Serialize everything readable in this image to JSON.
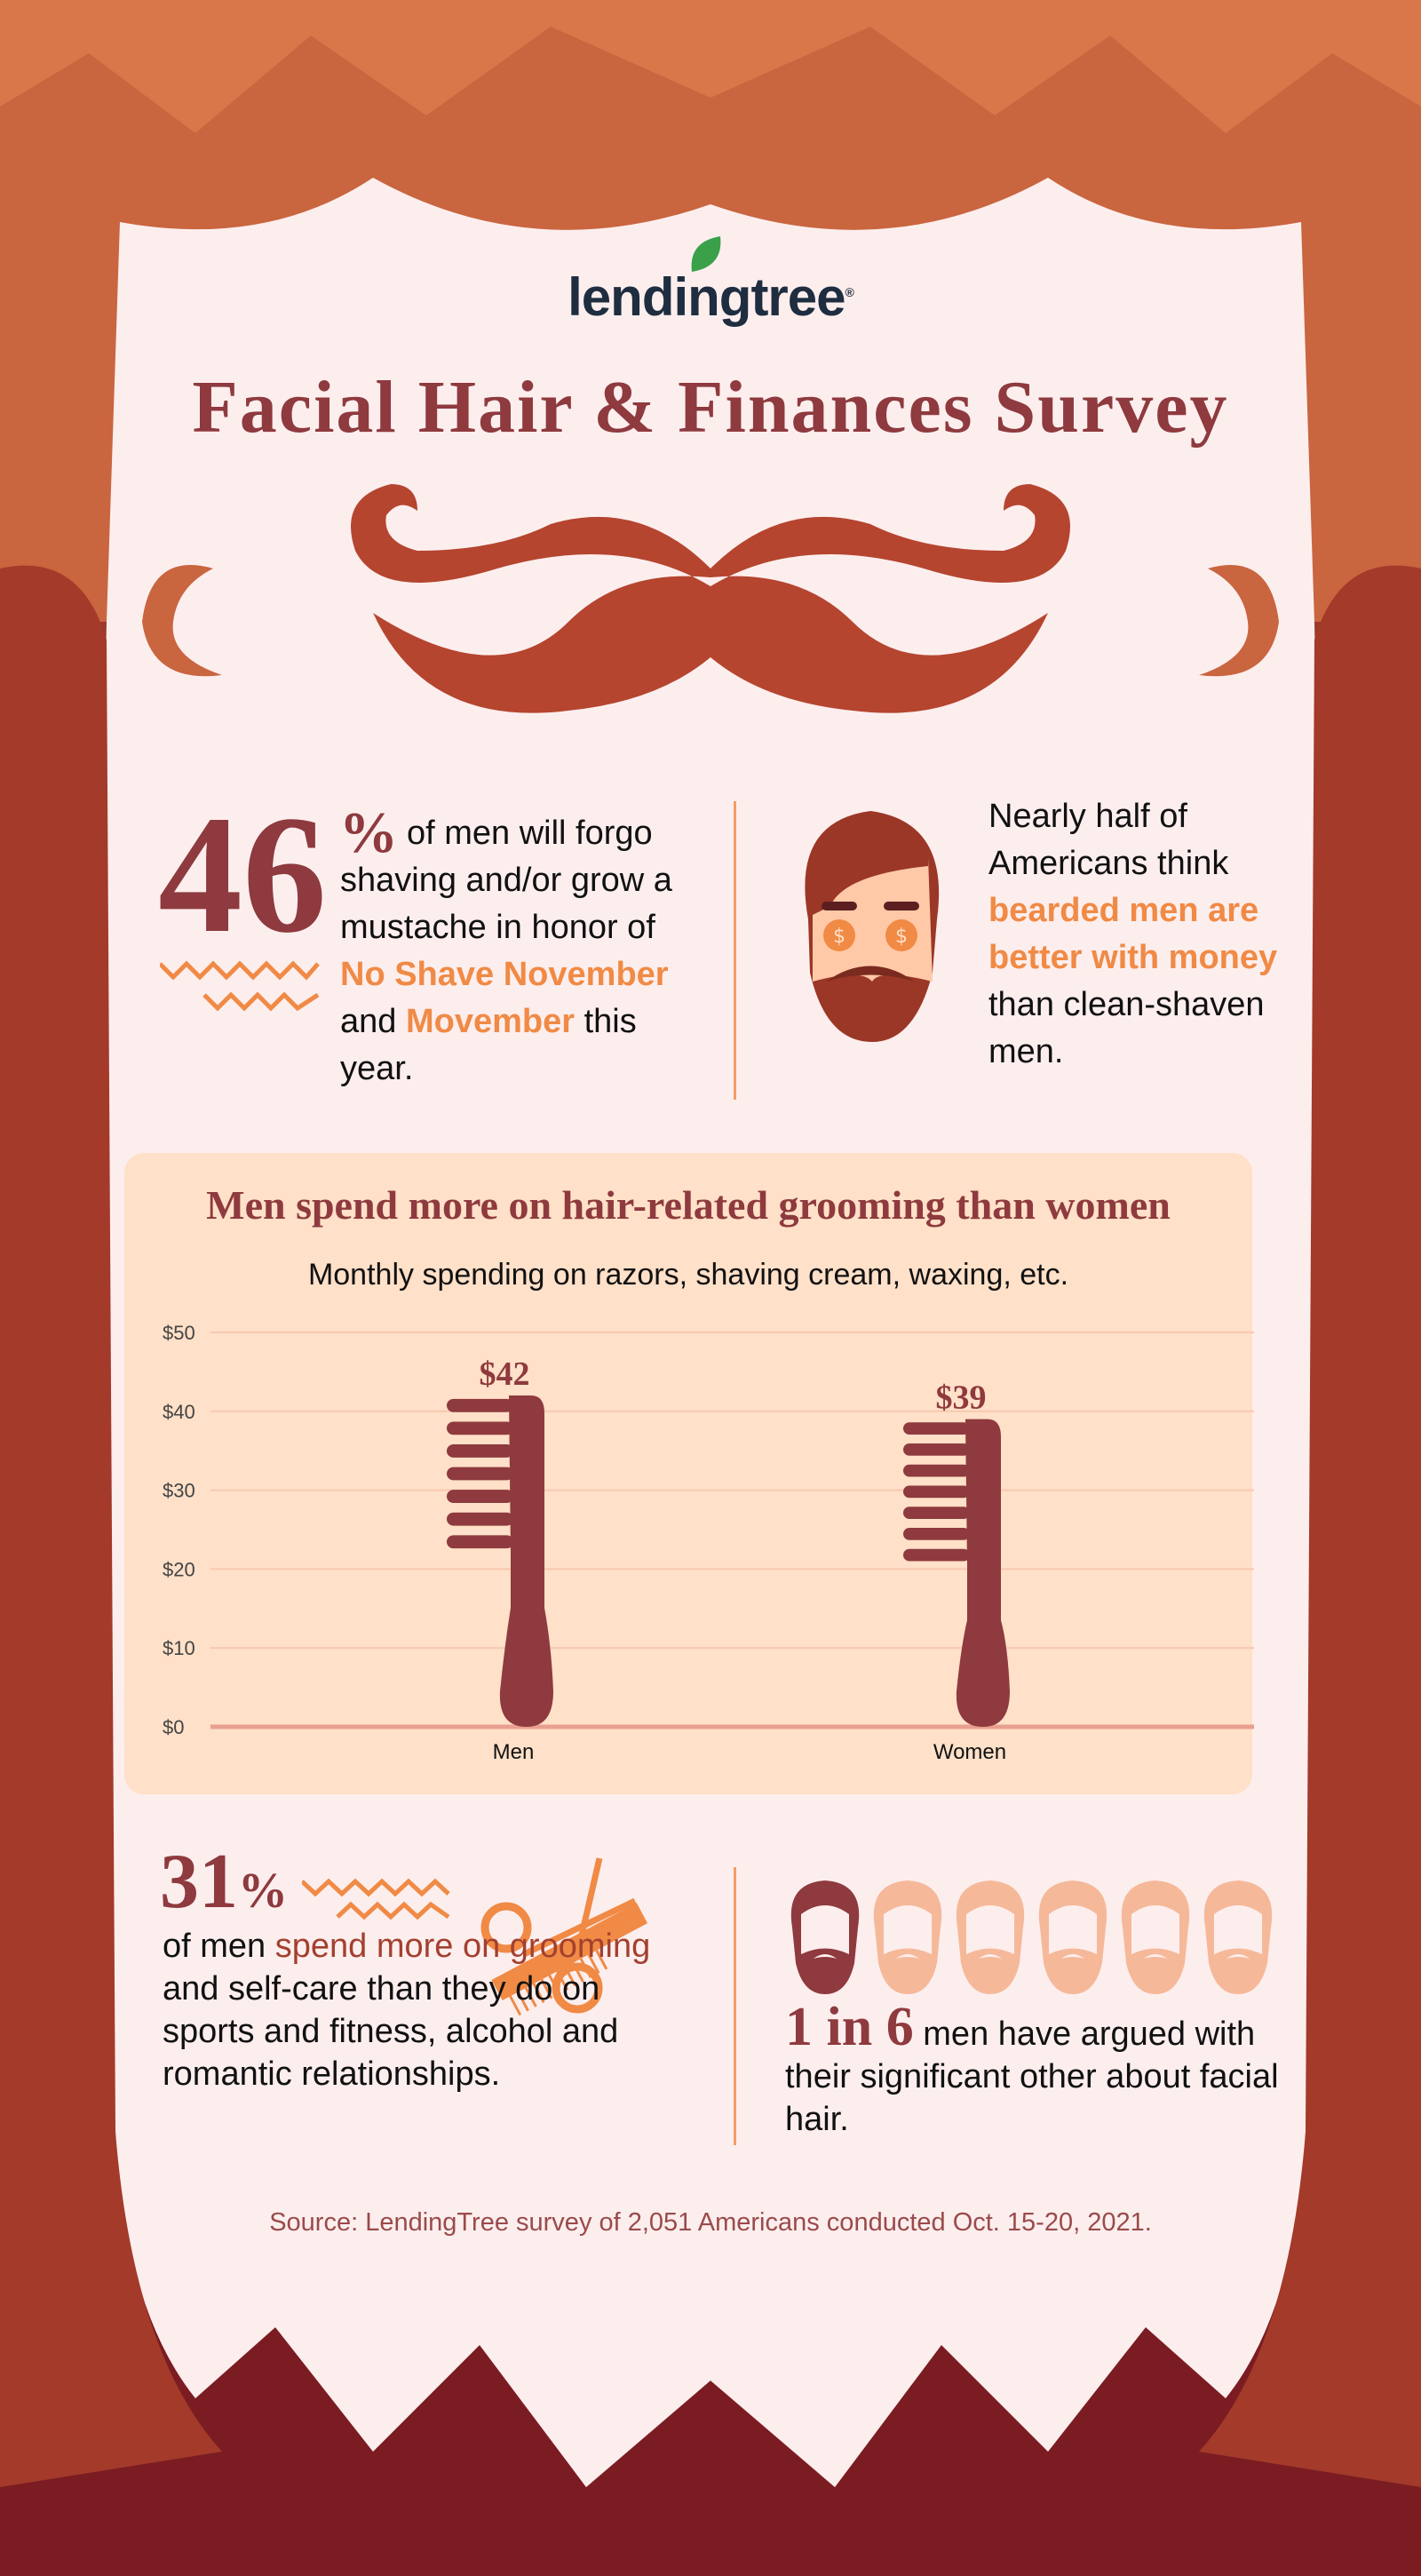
{
  "logo": {
    "text": "lendingtree",
    "color": "#1e2d3f",
    "leaf_color": "#3aa14a"
  },
  "title": "Facial Hair & Finances Survey",
  "stat1": {
    "number": "46",
    "percent": "%",
    "text1": "of men will forgo shaving and/or grow a mustache in honor of",
    "hl1": "No Shave November",
    "text2": "and",
    "hl2": "Movember",
    "text3": "this year."
  },
  "stat2": {
    "text1": "Nearly half of Americans think",
    "hl": "bearded men are better with money",
    "text2": "than clean-shaven men."
  },
  "chart_data": {
    "type": "bar",
    "title": "Men spend more on hair-related grooming than women",
    "subtitle": "Monthly spending on razors, shaving cream, waxing, etc.",
    "categories": [
      "Men",
      "Women"
    ],
    "values": [
      42,
      39
    ],
    "data_labels": [
      "$42",
      "$39"
    ],
    "yticks": [
      "$0",
      "$10",
      "$20",
      "$30",
      "$40",
      "$50"
    ],
    "ylim": [
      0,
      50
    ],
    "grid": true,
    "bar_shape": "comb",
    "bar_color": "#8e3a3e"
  },
  "stat3": {
    "number": "31",
    "percent": "%",
    "text1": "of men",
    "hl": "spend more on grooming",
    "text2": "and self-care than they do on sports and fitness, alcohol and romantic relationships."
  },
  "stat4": {
    "number": "1 in 6",
    "text": "men have argued with their significant other about facial hair.",
    "faces_highlighted": 1,
    "faces_total": 6
  },
  "source": "Source: LendingTree survey of 2,051 Americans conducted Oct. 15-20, 2021.",
  "colors": {
    "accent": "#f08a45",
    "maroon": "#8e3a3e",
    "cream": "#fdeeee",
    "panel": "#ffe0c8"
  }
}
